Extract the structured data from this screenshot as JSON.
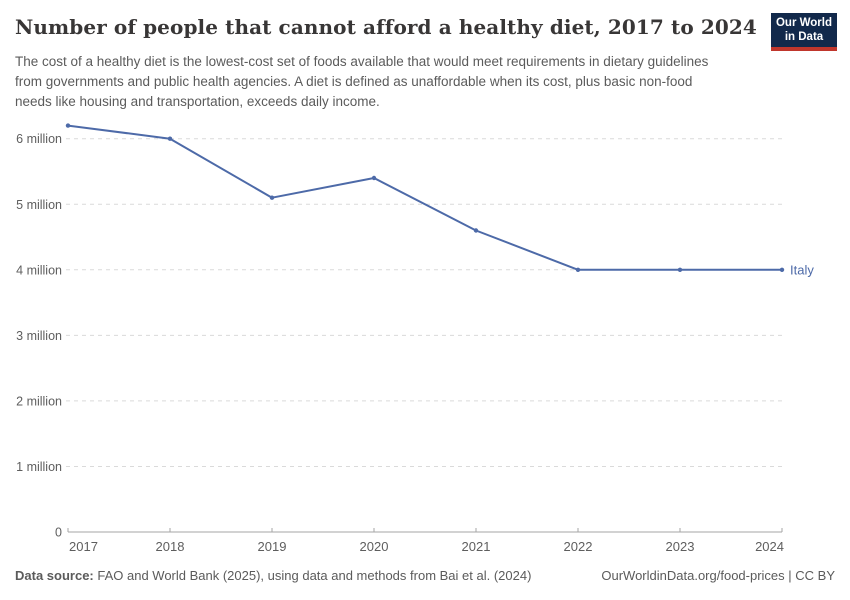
{
  "header": {
    "title": "Number of people that cannot afford a healthy diet, 2017 to 2024",
    "subtitle": "The cost of a healthy diet is the lowest-cost set of foods available that would meet requirements in dietary guidelines from governments and public health agencies. A diet is defined as unaffordable when its cost, plus basic non-food needs like housing and transportation, exceeds daily income.",
    "logo": {
      "line1": "Our World",
      "line2": "in Data",
      "bg_color": "#12294b",
      "bar_color": "#c0362c"
    }
  },
  "chart_data": {
    "type": "line",
    "title": "Number of people that cannot afford a healthy diet, 2017 to 2024",
    "x": [
      2017,
      2018,
      2019,
      2020,
      2021,
      2022,
      2023,
      2024
    ],
    "series": [
      {
        "name": "Italy",
        "color": "#4d6aa8",
        "values_millions": [
          6.2,
          6.0,
          5.1,
          5.4,
          4.6,
          4.0,
          4.0,
          4.0
        ]
      }
    ],
    "xlabel": "",
    "ylabel": "",
    "ylim_millions": [
      0,
      6.4
    ],
    "yticks": [
      {
        "value": 0,
        "label": "0"
      },
      {
        "value": 1,
        "label": "1 million"
      },
      {
        "value": 2,
        "label": "2 million"
      },
      {
        "value": 3,
        "label": "3 million"
      },
      {
        "value": 4,
        "label": "4 million"
      },
      {
        "value": 5,
        "label": "5 million"
      },
      {
        "value": 6,
        "label": "6 million"
      }
    ],
    "grid": "horizontal-dashed",
    "legend_position": "end-of-line-label",
    "end_label": "Italy"
  },
  "footer": {
    "datasource_label": "Data source:",
    "datasource_text": " FAO and World Bank (2025), using data and methods from Bai et al. (2024)",
    "link_text": "OurWorldinData.org/food-prices | CC BY"
  },
  "colors": {
    "line": "#4d6aa8",
    "grid": "#dadada",
    "axis": "#a5a5a5",
    "tick_text": "#5e5e5e",
    "title_text": "#383636",
    "muted_text": "#5b5b5b"
  }
}
